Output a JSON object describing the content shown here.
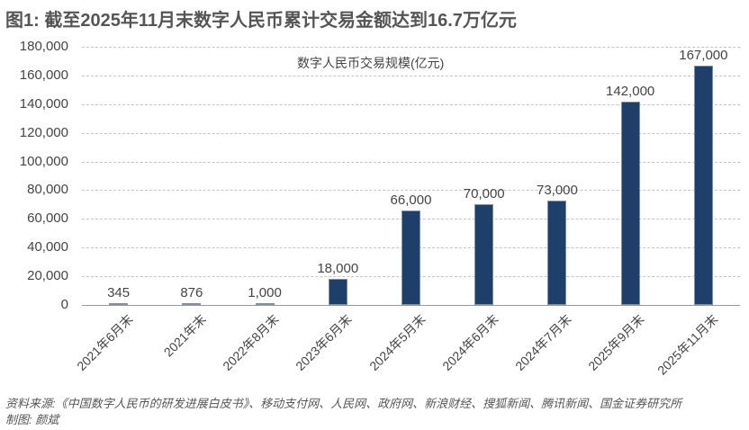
{
  "title": "图1: 截至2025年11月末数字人民币累计交易金额达到16.7万亿元",
  "chart_data": {
    "type": "bar",
    "title": "图1: 截至2025年11月末数字人民币累计交易金额达到16.7万亿元",
    "series_label": "数字人民币交易规模(亿元)",
    "xlabel": "",
    "ylabel": "",
    "ylim": [
      0,
      180000
    ],
    "yticks": [
      "180,000",
      "160,000",
      "140,000",
      "120,000",
      "100,000",
      "80,000",
      "60,000",
      "40,000",
      "20,000",
      "0"
    ],
    "grid": true,
    "legend_position": "top-center (inline label)",
    "categories": [
      "2021年6月末",
      "2021年末",
      "2022年8月末",
      "2023年6月末",
      "2024年5月末",
      "2024年6月末",
      "2024年7月末",
      "2025年9月末",
      "2025年11月末"
    ],
    "values": [
      345,
      876,
      1000,
      18000,
      66000,
      70000,
      73000,
      142000,
      167000
    ],
    "value_labels": [
      "345",
      "876",
      "1,000",
      "18,000",
      "66,000",
      "70,000",
      "73,000",
      "142,000",
      "167,000"
    ],
    "bar_color": "#1f3f6b"
  },
  "footer": {
    "source": "资料来源:《中国数字人民币的研发进展白皮书》、移动支付网、人民网、政府网、新浪财经、搜狐新闻、腾讯新闻、国金证券研究所",
    "credit": "制图: 颜斌"
  }
}
